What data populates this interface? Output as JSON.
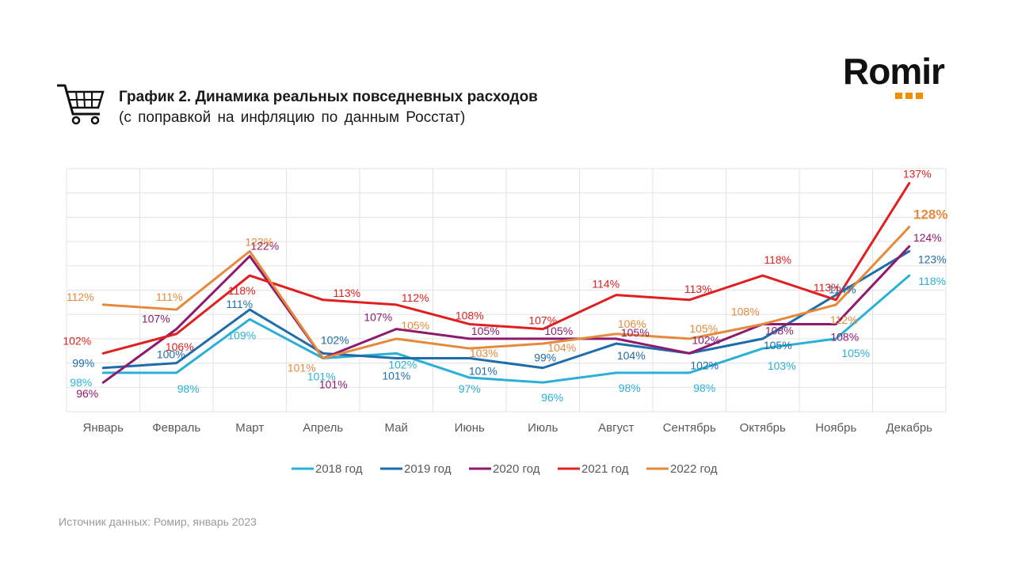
{
  "title": {
    "line1": "График 2. Динамика реальных повседневных расходов",
    "line2": "(с поправкой на инфляцию по данным Росстат)"
  },
  "logo": {
    "text": "Romir",
    "accent_color": "#f28c00"
  },
  "icons": {
    "cart": "shopping-cart-icon"
  },
  "source": "Источник данных: Ромир, январь 2023",
  "chart_data": {
    "type": "line",
    "categories": [
      "Январь",
      "Февраль",
      "Март",
      "Апрель",
      "Май",
      "Июнь",
      "Июль",
      "Август",
      "Сентябрь",
      "Октябрь",
      "Ноябрь",
      "Декабрь"
    ],
    "value_suffix": "%",
    "ylim": [
      96,
      137
    ],
    "grid": true,
    "legend_position": "bottom",
    "series": [
      {
        "name": "2018 год",
        "color": "#2ab0d6",
        "values": [
          98,
          98,
          109,
          101,
          102,
          97,
          96,
          98,
          98,
          103,
          105,
          118
        ],
        "labels": [
          "98%",
          "98%",
          "109%",
          "101%",
          "102%",
          "97%",
          "96%",
          "98%",
          "98%",
          "103%",
          "105%",
          "118%"
        ]
      },
      {
        "name": "2019 год",
        "color": "#1f6cab",
        "values": [
          99,
          100,
          111,
          102,
          101,
          101,
          99,
          104,
          102,
          105,
          114,
          123
        ],
        "labels": [
          "99%",
          "100%",
          "111%",
          "102%",
          "101%",
          "101%",
          "99%",
          "104%",
          "102%",
          "105%",
          "114%",
          "123%"
        ]
      },
      {
        "name": "2020 год",
        "color": "#8e1a6e",
        "values": [
          96,
          107,
          122,
          101,
          107,
          105,
          105,
          105,
          102,
          108,
          108,
          124
        ],
        "labels": [
          "96%",
          "107%",
          "122%",
          "101%",
          "107%",
          "105%",
          "105%",
          "105%",
          "102%",
          "108%",
          "108%",
          "124%"
        ]
      },
      {
        "name": "2021 год",
        "color": "#e02020",
        "values": [
          102,
          106,
          118,
          113,
          112,
          108,
          107,
          114,
          113,
          118,
          113,
          137
        ],
        "labels": [
          "102%",
          "106%",
          "118%",
          "113%",
          "112%",
          "108%",
          "107%",
          "114%",
          "113%",
          "118%",
          "113%",
          "137%"
        ]
      },
      {
        "name": "2022 год",
        "color": "#e58a3c",
        "values": [
          112,
          111,
          123,
          101,
          105,
          103,
          104,
          106,
          105,
          108,
          112,
          128
        ],
        "labels": [
          "112%",
          "111%",
          "123%",
          "101%",
          "105%",
          "103%",
          "104%",
          "106%",
          "105%",
          "108%",
          "112%",
          "128%"
        ]
      }
    ]
  }
}
